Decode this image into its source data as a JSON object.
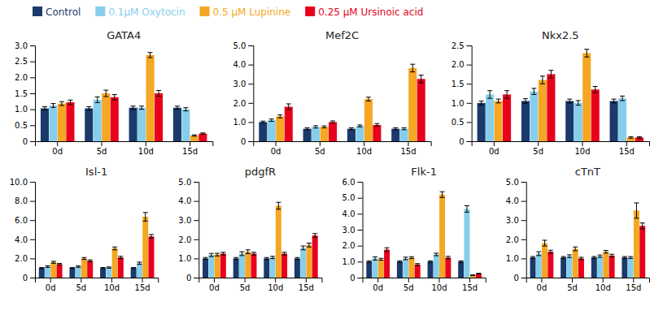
{
  "chart_data": [
    {
      "type": "bar",
      "title": "GATA4",
      "categories": [
        "0d",
        "5d",
        "10d",
        "15d"
      ],
      "series": [
        {
          "name": "Control",
          "color": "#1a3a6b",
          "values": [
            1.03,
            1.03,
            1.05,
            1.05
          ],
          "errors": [
            0.05,
            0.05,
            0.05,
            0.05
          ]
        },
        {
          "name": "0.1μM Oxytocin",
          "color": "#87ceeb",
          "values": [
            1.12,
            1.3,
            1.05,
            1.0
          ],
          "errors": [
            0.06,
            0.09,
            0.05,
            0.05
          ]
        },
        {
          "name": "0.5 μM Lupinine",
          "color": "#f5a623",
          "values": [
            1.18,
            1.5,
            2.7,
            0.18
          ],
          "errors": [
            0.06,
            0.1,
            0.08,
            0.02
          ]
        },
        {
          "name": "0.25 μM Ursinoic acid",
          "color": "#e8001c",
          "values": [
            1.22,
            1.38,
            1.5,
            0.24
          ],
          "errors": [
            0.07,
            0.08,
            0.09,
            0.02
          ]
        }
      ],
      "ylim": [
        0,
        3.0
      ],
      "yticks": [
        0,
        0.5,
        {
          "value": 1.0,
          "label": "1.0"
        },
        1.5,
        {
          "value": 2.0,
          "label": "2.0"
        },
        2.5,
        {
          "value": 3.0,
          "label": "3.0"
        }
      ]
    },
    {
      "type": "bar",
      "title": "Mef2C",
      "categories": [
        "0d",
        "5d",
        "10d",
        "15d"
      ],
      "series": [
        {
          "name": "Control",
          "color": "#1a3a6b",
          "values": [
            1.0,
            0.65,
            0.65,
            0.65
          ],
          "errors": [
            0.05,
            0.05,
            0.05,
            0.05
          ]
        },
        {
          "name": "0.1μM Oxytocin",
          "color": "#87ceeb",
          "values": [
            1.1,
            0.75,
            0.8,
            0.65
          ],
          "errors": [
            0.06,
            0.06,
            0.05,
            0.05
          ]
        },
        {
          "name": "0.5 μM Lupinine",
          "color": "#f5a623",
          "values": [
            1.3,
            0.75,
            2.2,
            3.82
          ],
          "errors": [
            0.08,
            0.05,
            0.1,
            0.2
          ]
        },
        {
          "name": "0.25 μM Ursinoic acid",
          "color": "#e8001c",
          "values": [
            1.8,
            1.0,
            0.85,
            3.25
          ],
          "errors": [
            0.15,
            0.06,
            0.07,
            0.2
          ]
        }
      ],
      "ylim": [
        0,
        5.0
      ],
      "yticks": [
        0,
        {
          "value": 1.0,
          "label": "1.0"
        },
        {
          "value": 2.0,
          "label": "2.0"
        },
        {
          "value": 3.0,
          "label": "3.0"
        },
        {
          "value": 4.0,
          "label": "4.0"
        },
        {
          "value": 5.0,
          "label": "5.0"
        }
      ]
    },
    {
      "type": "bar",
      "title": "Nkx2.5",
      "categories": [
        "0d",
        "5d",
        "10d",
        "15d"
      ],
      "series": [
        {
          "name": "Control",
          "color": "#1a3a6b",
          "values": [
            1.0,
            1.05,
            1.05,
            1.05
          ],
          "errors": [
            0.05,
            0.06,
            0.05,
            0.05
          ]
        },
        {
          "name": "0.1μM Oxytocin",
          "color": "#87ceeb",
          "values": [
            1.22,
            1.3,
            1.0,
            1.12
          ],
          "errors": [
            0.1,
            0.08,
            0.06,
            0.06
          ]
        },
        {
          "name": "0.5 μM Lupinine",
          "color": "#f5a623",
          "values": [
            1.05,
            1.6,
            2.3,
            0.1
          ],
          "errors": [
            0.05,
            0.1,
            0.1,
            0.02
          ]
        },
        {
          "name": "0.25 μM Ursinoic acid",
          "color": "#e8001c",
          "values": [
            1.22,
            1.75,
            1.35,
            0.1
          ],
          "errors": [
            0.1,
            0.1,
            0.08,
            0.02
          ]
        }
      ],
      "ylim": [
        0,
        2.5
      ],
      "yticks": [
        0,
        0.5,
        {
          "value": 1.0,
          "label": "1.0"
        },
        1.5,
        {
          "value": 2.0,
          "label": "2.0"
        },
        2.5
      ]
    },
    {
      "type": "bar",
      "title": "Isl-1",
      "categories": [
        "0d",
        "5d",
        "10d",
        "15d"
      ],
      "series": [
        {
          "name": "Control",
          "color": "#1a3a6b",
          "values": [
            1.0,
            1.0,
            1.0,
            1.0
          ],
          "errors": [
            0.05,
            0.05,
            0.05,
            0.05
          ]
        },
        {
          "name": "0.1μM Oxytocin",
          "color": "#87ceeb",
          "values": [
            1.15,
            1.15,
            1.05,
            1.5
          ],
          "errors": [
            0.08,
            0.07,
            0.06,
            0.12
          ]
        },
        {
          "name": "0.5 μM Lupinine",
          "color": "#f5a623",
          "values": [
            1.6,
            2.0,
            3.05,
            6.35
          ],
          "errors": [
            0.1,
            0.1,
            0.15,
            0.45
          ]
        },
        {
          "name": "0.25 μM Ursinoic acid",
          "color": "#e8001c",
          "values": [
            1.4,
            1.75,
            2.1,
            4.3
          ],
          "errors": [
            0.08,
            0.1,
            0.12,
            0.2
          ]
        }
      ],
      "ylim": [
        0,
        10.0
      ],
      "yticks": [
        0,
        {
          "value": 2.0,
          "label": "2.0"
        },
        {
          "value": 4.0,
          "label": "4.0"
        },
        {
          "value": 6.0,
          "label": "6.0"
        },
        {
          "value": 8.0,
          "label": "8.0"
        },
        {
          "value": 10.0,
          "label": "10.0"
        }
      ]
    },
    {
      "type": "bar",
      "title": "pdgfR",
      "categories": [
        "0d",
        "5d",
        "10d",
        "15d"
      ],
      "series": [
        {
          "name": "Control",
          "color": "#1a3a6b",
          "values": [
            1.0,
            1.0,
            1.0,
            1.0
          ],
          "errors": [
            0.05,
            0.05,
            0.05,
            0.05
          ]
        },
        {
          "name": "0.1μM Oxytocin",
          "color": "#87ceeb",
          "values": [
            1.18,
            1.25,
            1.05,
            1.55
          ],
          "errors": [
            0.08,
            0.1,
            0.06,
            0.1
          ]
        },
        {
          "name": "0.5 μM Lupinine",
          "color": "#f5a623",
          "values": [
            1.2,
            1.35,
            3.75,
            1.7
          ],
          "errors": [
            0.07,
            0.1,
            0.18,
            0.1
          ]
        },
        {
          "name": "0.25 μM Ursinoic acid",
          "color": "#e8001c",
          "values": [
            1.25,
            1.25,
            1.25,
            2.2
          ],
          "errors": [
            0.07,
            0.07,
            0.07,
            0.1
          ]
        }
      ],
      "ylim": [
        0,
        5.0
      ],
      "yticks": [
        0,
        {
          "value": 1.0,
          "label": "1.0"
        },
        {
          "value": 2.0,
          "label": "2.0"
        },
        {
          "value": 3.0,
          "label": "3.0"
        },
        {
          "value": 4.0,
          "label": "4.0"
        },
        {
          "value": 5.0,
          "label": "5.0"
        }
      ]
    },
    {
      "type": "bar",
      "title": "Flk-1",
      "categories": [
        "0d",
        "5d",
        "10d",
        "15d"
      ],
      "series": [
        {
          "name": "Control",
          "color": "#1a3a6b",
          "values": [
            1.0,
            1.0,
            1.0,
            1.0
          ],
          "errors": [
            0.05,
            0.05,
            0.05,
            0.05
          ]
        },
        {
          "name": "0.1μM Oxytocin",
          "color": "#87ceeb",
          "values": [
            1.2,
            1.2,
            1.45,
            4.3
          ],
          "errors": [
            0.1,
            0.08,
            0.08,
            0.2
          ]
        },
        {
          "name": "0.5 μM Lupinine",
          "color": "#f5a623",
          "values": [
            1.15,
            1.25,
            5.2,
            0.15
          ],
          "errors": [
            0.06,
            0.06,
            0.18,
            0.02
          ]
        },
        {
          "name": "0.25 μM Ursinoic acid",
          "color": "#e8001c",
          "values": [
            1.75,
            0.82,
            1.25,
            0.25
          ],
          "errors": [
            0.12,
            0.06,
            0.08,
            0.02
          ]
        }
      ],
      "ylim": [
        0,
        6.0
      ],
      "yticks": [
        0,
        {
          "value": 1.0,
          "label": "1.0"
        },
        {
          "value": 2.0,
          "label": "2.0"
        },
        {
          "value": 3.0,
          "label": "3.0"
        },
        {
          "value": 4.0,
          "label": "4.0"
        },
        {
          "value": 5.0,
          "label": "5.0"
        },
        {
          "value": 6.0,
          "label": "6.0"
        }
      ]
    },
    {
      "type": "bar",
      "title": "cTnT",
      "categories": [
        "0d",
        "5d",
        "10d",
        "15d"
      ],
      "series": [
        {
          "name": "Control",
          "color": "#1a3a6b",
          "values": [
            1.05,
            1.05,
            1.05,
            1.05
          ],
          "errors": [
            0.05,
            0.05,
            0.05,
            0.05
          ]
        },
        {
          "name": "0.1μM Oxytocin",
          "color": "#87ceeb",
          "values": [
            1.25,
            1.12,
            1.12,
            1.05
          ],
          "errors": [
            0.1,
            0.07,
            0.06,
            0.05
          ]
        },
        {
          "name": "0.5 μM Lupinine",
          "color": "#f5a623",
          "values": [
            1.8,
            1.5,
            1.35,
            3.5
          ],
          "errors": [
            0.15,
            0.1,
            0.07,
            0.4
          ]
        },
        {
          "name": "0.25 μM Ursinoic acid",
          "color": "#e8001c",
          "values": [
            1.35,
            1.0,
            1.15,
            2.7
          ],
          "errors": [
            0.08,
            0.06,
            0.07,
            0.15
          ]
        }
      ],
      "ylim": [
        0,
        5.0
      ],
      "yticks": [
        0,
        {
          "value": 1.0,
          "label": "1.0"
        },
        {
          "value": 2.0,
          "label": "2.0"
        },
        {
          "value": 3.0,
          "label": "3.0"
        },
        {
          "value": 4.0,
          "label": "4.0"
        },
        {
          "value": 5.0,
          "label": "5.0"
        }
      ]
    }
  ]
}
